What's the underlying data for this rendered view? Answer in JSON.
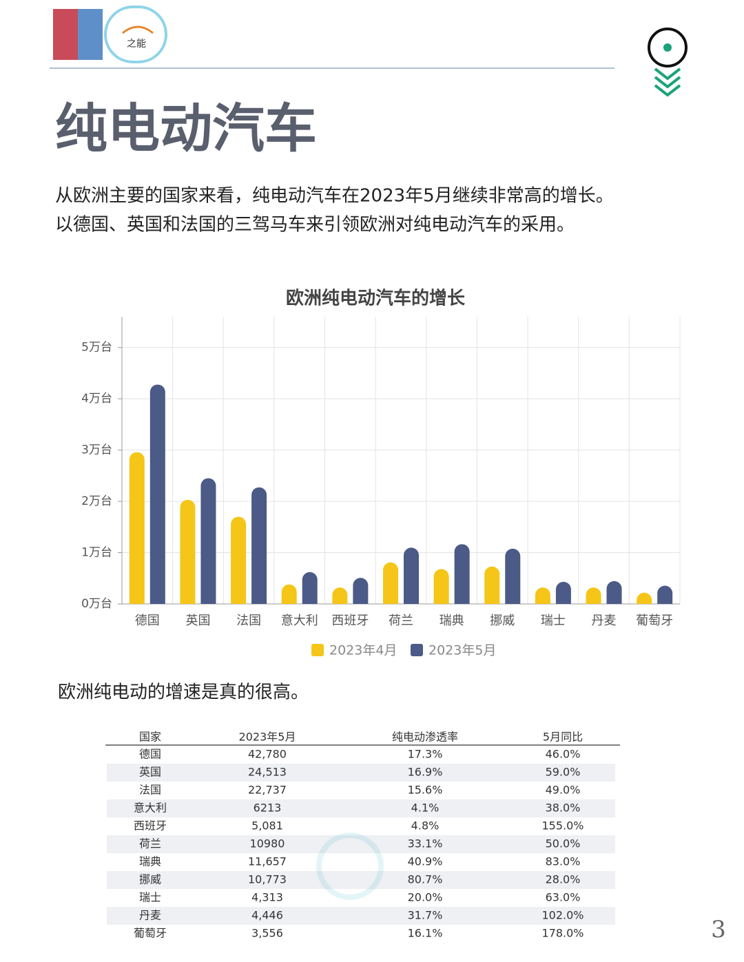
{
  "logo_text": "之能",
  "title": "纯电动汽车",
  "intro": [
    "从欧洲主要的国家来看，纯电动汽车在2023年5月继续非常高的增长。",
    "以德国、英国和法国的三驾马车来引领欧洲对纯电动汽车的采用。"
  ],
  "chart_data": {
    "type": "bar",
    "title": "欧洲纯电动汽车的增长",
    "categories": [
      "德国",
      "英国",
      "法国",
      "意大利",
      "西班牙",
      "荷兰",
      "瑞典",
      "挪威",
      "瑞士",
      "丹麦",
      "葡萄牙"
    ],
    "series": [
      {
        "name": "2023年4月",
        "color": "#f5c518",
        "values": [
          29600,
          20300,
          17000,
          3800,
          3200,
          8100,
          6800,
          7300,
          3200,
          3200,
          2200
        ]
      },
      {
        "name": "2023年5月",
        "color": "#4b5a86",
        "values": [
          42780,
          24513,
          22737,
          6213,
          5081,
          10980,
          11657,
          10773,
          4313,
          4446,
          3556
        ]
      }
    ],
    "ylim": [
      0,
      56000
    ],
    "yticks": [
      {
        "value": 0,
        "label": "0万台"
      },
      {
        "value": 10000,
        "label": "1万台"
      },
      {
        "value": 20000,
        "label": "2万台"
      },
      {
        "value": 30000,
        "label": "3万台"
      },
      {
        "value": 40000,
        "label": "4万台"
      },
      {
        "value": 50000,
        "label": "5万台"
      }
    ],
    "grid": true,
    "legend": "bottom"
  },
  "table_intro": "欧洲纯电动的增速是真的很高。",
  "table": {
    "header": [
      "国家",
      "2023年5月",
      "纯电动渗透率",
      "5月同比"
    ],
    "rows": [
      [
        "德国",
        "42,780",
        "17.3%",
        "46.0%"
      ],
      [
        "英国",
        "24,513",
        "16.9%",
        "59.0%"
      ],
      [
        "法国",
        "22,737",
        "15.6%",
        "49.0%"
      ],
      [
        "意大利",
        "6213",
        "4.1%",
        "38.0%"
      ],
      [
        "西班牙",
        "5,081",
        "4.8%",
        "155.0%"
      ],
      [
        "荷兰",
        "10980",
        "33.1%",
        "50.0%"
      ],
      [
        "瑞典",
        "11,657",
        "40.9%",
        "83.0%"
      ],
      [
        "挪威",
        "10,773",
        "80.7%",
        "28.0%"
      ],
      [
        "瑞士",
        "4,313",
        "20.0%",
        "63.0%"
      ],
      [
        "丹麦",
        "4,446",
        "31.7%",
        "102.0%"
      ],
      [
        "葡萄牙",
        "3,556",
        "16.1%",
        "178.0%"
      ]
    ]
  },
  "page_number": "3"
}
